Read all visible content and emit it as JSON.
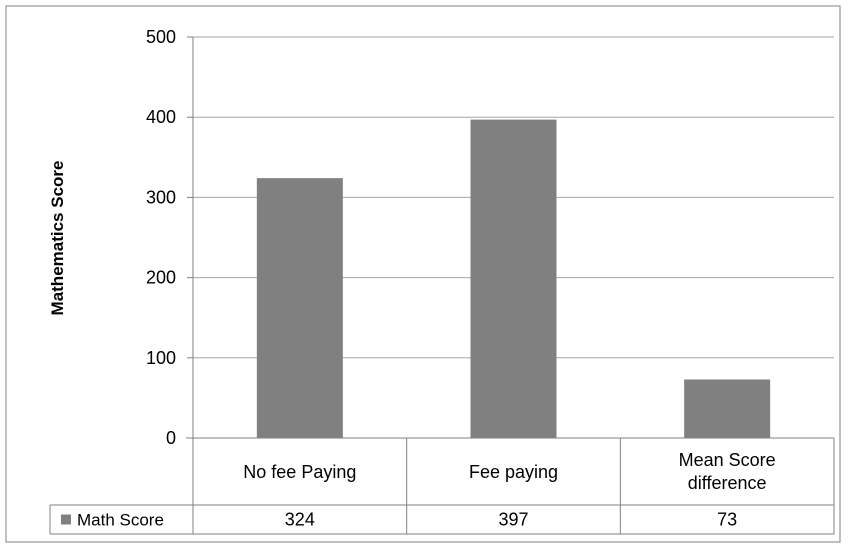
{
  "chart_data": {
    "type": "bar",
    "categories": [
      "No fee Paying",
      "Fee paying",
      "Mean Score difference"
    ],
    "series": [
      {
        "name": "Math Score",
        "values": [
          324,
          397,
          73
        ]
      }
    ],
    "title": "",
    "xlabel": "",
    "ylabel": "Mathematics Score",
    "ylim": [
      0,
      500
    ],
    "yticks": [
      0,
      100,
      200,
      300,
      400,
      500
    ],
    "grid": true,
    "legend": "data-table-row",
    "data_table": {
      "legend_label": "Math Score",
      "values": [
        "324",
        "397",
        "73"
      ]
    },
    "colors": {
      "bar": "#808080",
      "grid": "#a6a6a6",
      "border": "#808080",
      "background": "#ffffff"
    }
  }
}
